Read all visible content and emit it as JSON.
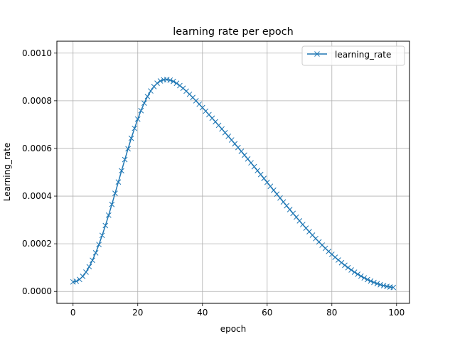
{
  "chart_data": {
    "type": "line",
    "title": "learning rate per epoch",
    "xlabel": "epoch",
    "ylabel": "Learning_rate",
    "xlim": [
      -5,
      104
    ],
    "ylim": [
      -5e-05,
      0.00105
    ],
    "xticks": [
      0,
      20,
      40,
      60,
      80,
      100
    ],
    "yticks": [
      0.0,
      0.0002,
      0.0004,
      0.0006,
      0.0008,
      0.001
    ],
    "xtick_labels": [
      "0",
      "20",
      "40",
      "60",
      "80",
      "100"
    ],
    "ytick_labels": [
      "0.0000",
      "0.0002",
      "0.0004",
      "0.0006",
      "0.0008",
      "0.0010"
    ],
    "grid": true,
    "legend_position": "top-right",
    "series": [
      {
        "name": "learning_rate",
        "color": "#1f77b4",
        "marker": "x",
        "x": [
          0,
          1,
          2,
          3,
          4,
          5,
          6,
          7,
          8,
          9,
          10,
          11,
          12,
          13,
          14,
          15,
          16,
          17,
          18,
          19,
          20,
          21,
          22,
          23,
          24,
          25,
          26,
          27,
          28,
          29,
          30,
          31,
          32,
          33,
          34,
          35,
          36,
          37,
          38,
          39,
          40,
          41,
          42,
          43,
          44,
          45,
          46,
          47,
          48,
          49,
          50,
          51,
          52,
          53,
          54,
          55,
          56,
          57,
          58,
          59,
          60,
          61,
          62,
          63,
          64,
          65,
          66,
          67,
          68,
          69,
          70,
          71,
          72,
          73,
          74,
          75,
          76,
          77,
          78,
          79,
          80,
          81,
          82,
          83,
          84,
          85,
          86,
          87,
          88,
          89,
          90,
          91,
          92,
          93,
          94,
          95,
          96,
          97,
          98,
          99
        ],
        "y": [
          4e-05,
          4.26e-05,
          5.04e-05,
          6.33e-05,
          8.11e-05,
          0.0001037,
          0.0001308,
          0.000162,
          0.0001969,
          0.0002352,
          0.0002764,
          0.0003199,
          0.0003652,
          0.0004118,
          0.0004591,
          0.0005064,
          0.0005532,
          0.0005988,
          0.0006427,
          0.0006843,
          0.0007231,
          0.0007586,
          0.0007903,
          0.0008179,
          0.0008411,
          0.0008597,
          0.0008737,
          0.0008831,
          0.0008881,
          0.0008891,
          0.0008866,
          0.0008812,
          0.0008734,
          0.0008637,
          0.0008526,
          0.0008404,
          0.0008274,
          0.0008138,
          0.0007999,
          0.0007856,
          0.0007712,
          0.0007566,
          0.0007418,
          0.0007269,
          0.000712,
          0.0006969,
          0.0006817,
          0.0006663,
          0.0006509,
          0.0006354,
          0.0006197,
          0.0006039,
          0.000588,
          0.000572,
          0.0005559,
          0.0005397,
          0.0005234,
          0.0005071,
          0.0004907,
          0.0004742,
          0.0004577,
          0.0004412,
          0.0004248,
          0.0004083,
          0.0003919,
          0.0003756,
          0.0003594,
          0.0003434,
          0.0003274,
          0.0003117,
          0.0002961,
          0.0002807,
          0.0002656,
          0.0002507,
          0.0002361,
          0.0002218,
          0.0002078,
          0.0001942,
          0.0001809,
          0.000168,
          0.0001555,
          0.0001434,
          0.0001318,
          0.0001206,
          0.0001099,
          9.97e-05,
          9e-05,
          8.08e-05,
          7.22e-05,
          6.42e-05,
          5.67e-05,
          4.98e-05,
          4.35e-05,
          3.78e-05,
          3.27e-05,
          2.83e-05,
          2.44e-05,
          2.12e-05,
          1.86e-05,
          1.66e-05
        ]
      }
    ]
  }
}
